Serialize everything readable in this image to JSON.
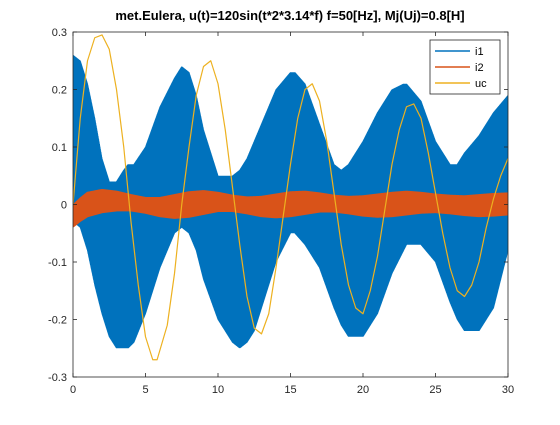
{
  "chart_data": {
    "type": "line",
    "title": "met.Eulera, u(t)=120sin(t*2*3.14*f) f=50[Hz], Mj(Uj)=0.8[H]",
    "xlabel": "",
    "ylabel": "",
    "xlim": [
      0,
      30
    ],
    "ylim": [
      -0.3,
      0.3
    ],
    "xticks": [
      0,
      5,
      10,
      15,
      20,
      25,
      30
    ],
    "yticks": [
      -0.3,
      -0.2,
      -0.1,
      0,
      0.1,
      0.2,
      0.3
    ],
    "xtick_labels": [
      "0",
      "5",
      "10",
      "15",
      "20",
      "25",
      "30"
    ],
    "ytick_labels": [
      "-0.3",
      "-0.2",
      "-0.1",
      "0",
      "0.1",
      "0.2",
      "0.3"
    ],
    "grid": false,
    "legend_position": "top-right",
    "series": [
      {
        "name": "i1",
        "color": "#0072BD",
        "rendering": "dense oscillation filling envelope band",
        "x": [
          0,
          0.5,
          1.0,
          1.5,
          2.0,
          2.5,
          3.0,
          3.5,
          3.8,
          4.2,
          5.0,
          6.0,
          7.0,
          7.5,
          8.0,
          8.5,
          9.0,
          10.0,
          11.0,
          11.5,
          12.0,
          12.5,
          13.0,
          14.0,
          15.0,
          15.3,
          16.0,
          17.0,
          18.0,
          18.5,
          19.0,
          20.0,
          21.0,
          22.0,
          22.8,
          23.0,
          24.0,
          25.0,
          26.0,
          26.5,
          27.0,
          28.0,
          29.0,
          30.0
        ],
        "upper": [
          0.26,
          0.25,
          0.21,
          0.15,
          0.08,
          0.04,
          0.04,
          0.06,
          0.07,
          0.07,
          0.1,
          0.17,
          0.22,
          0.24,
          0.23,
          0.19,
          0.13,
          0.05,
          0.05,
          0.06,
          0.08,
          0.11,
          0.14,
          0.2,
          0.23,
          0.23,
          0.21,
          0.14,
          0.07,
          0.06,
          0.07,
          0.11,
          0.16,
          0.2,
          0.21,
          0.21,
          0.18,
          0.11,
          0.07,
          0.07,
          0.09,
          0.12,
          0.16,
          0.19
        ],
        "lower": [
          -0.03,
          -0.04,
          -0.08,
          -0.14,
          -0.19,
          -0.23,
          -0.25,
          -0.25,
          -0.25,
          -0.24,
          -0.19,
          -0.11,
          -0.05,
          -0.04,
          -0.05,
          -0.08,
          -0.13,
          -0.2,
          -0.24,
          -0.25,
          -0.24,
          -0.22,
          -0.18,
          -0.1,
          -0.05,
          -0.05,
          -0.07,
          -0.11,
          -0.18,
          -0.21,
          -0.23,
          -0.23,
          -0.19,
          -0.12,
          -0.08,
          -0.07,
          -0.07,
          -0.1,
          -0.17,
          -0.2,
          -0.22,
          -0.22,
          -0.18,
          -0.08
        ]
      },
      {
        "name": "i2",
        "color": "#D95319",
        "rendering": "dense oscillation filling envelope band",
        "x": [
          0,
          0.5,
          1.0,
          2.0,
          3.0,
          4.0,
          5.0,
          6.0,
          7.0,
          8.0,
          9.0,
          10.0,
          11.0,
          12.0,
          13.0,
          14.0,
          15.0,
          16.0,
          17.0,
          18.0,
          19.0,
          20.0,
          21.0,
          22.0,
          23.0,
          24.0,
          25.0,
          26.0,
          27.0,
          28.0,
          29.0,
          30.0
        ],
        "upper": [
          0.0,
          0.012,
          0.022,
          0.027,
          0.024,
          0.018,
          0.013,
          0.013,
          0.018,
          0.023,
          0.025,
          0.022,
          0.017,
          0.014,
          0.015,
          0.019,
          0.023,
          0.024,
          0.021,
          0.017,
          0.015,
          0.016,
          0.019,
          0.022,
          0.024,
          0.022,
          0.019,
          0.017,
          0.016,
          0.018,
          0.02,
          0.021
        ],
        "lower": [
          -0.04,
          -0.03,
          -0.022,
          -0.015,
          -0.012,
          -0.012,
          -0.016,
          -0.022,
          -0.025,
          -0.023,
          -0.018,
          -0.013,
          -0.013,
          -0.017,
          -0.022,
          -0.024,
          -0.022,
          -0.018,
          -0.014,
          -0.014,
          -0.017,
          -0.021,
          -0.023,
          -0.022,
          -0.019,
          -0.016,
          -0.015,
          -0.017,
          -0.02,
          -0.022,
          -0.021,
          -0.019
        ]
      },
      {
        "name": "uc",
        "color": "#EDB120",
        "x": [
          0,
          0.5,
          1.0,
          1.5,
          2.0,
          2.5,
          3.0,
          3.5,
          4.0,
          4.5,
          5.0,
          5.5,
          5.8,
          6.5,
          7.0,
          7.5,
          8.0,
          8.5,
          9.0,
          9.5,
          10.0,
          10.5,
          11.0,
          11.5,
          12.0,
          12.5,
          13.0,
          13.5,
          14.0,
          14.5,
          15.0,
          15.5,
          16.0,
          16.5,
          17.0,
          17.5,
          18.0,
          18.5,
          19.0,
          19.5,
          20.0,
          20.5,
          21.0,
          21.5,
          22.0,
          22.5,
          23.0,
          23.5,
          24.0,
          24.5,
          25.0,
          25.5,
          26.0,
          26.5,
          27.0,
          27.5,
          28.0,
          28.5,
          29.0,
          29.5,
          30.0
        ],
        "y": [
          0.0,
          0.15,
          0.25,
          0.29,
          0.295,
          0.27,
          0.2,
          0.1,
          -0.03,
          -0.14,
          -0.23,
          -0.27,
          -0.27,
          -0.21,
          -0.12,
          0.0,
          0.1,
          0.19,
          0.24,
          0.25,
          0.21,
          0.13,
          0.03,
          -0.07,
          -0.16,
          -0.215,
          -0.225,
          -0.19,
          -0.11,
          -0.02,
          0.07,
          0.15,
          0.2,
          0.21,
          0.18,
          0.11,
          0.02,
          -0.07,
          -0.14,
          -0.18,
          -0.19,
          -0.15,
          -0.09,
          -0.01,
          0.07,
          0.13,
          0.17,
          0.175,
          0.15,
          0.09,
          0.02,
          -0.05,
          -0.11,
          -0.15,
          -0.16,
          -0.14,
          -0.1,
          -0.04,
          0.01,
          0.05,
          0.08
        ]
      }
    ]
  }
}
